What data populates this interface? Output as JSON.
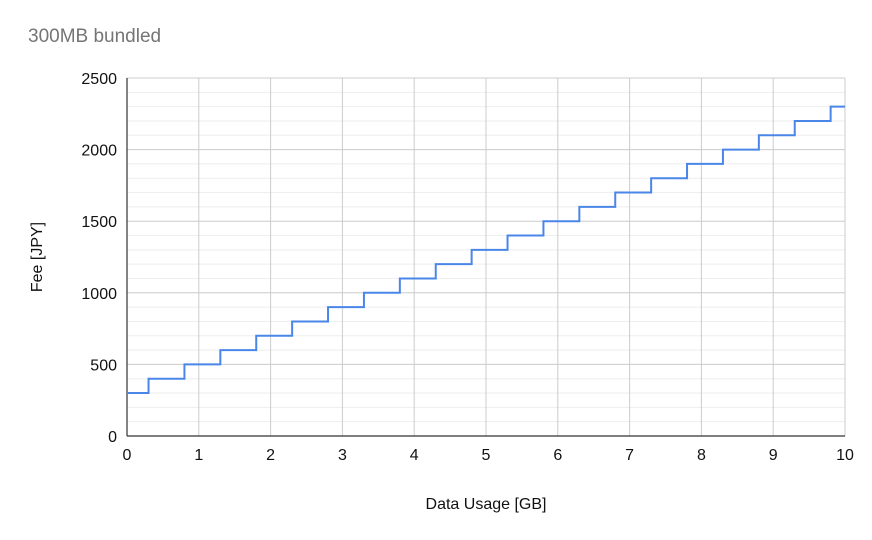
{
  "chart_data": {
    "type": "line",
    "title": "300MB bundled",
    "xlabel": "Data Usage [GB]",
    "ylabel": "Fee [JPY]",
    "xlim": [
      0,
      10
    ],
    "ylim": [
      0,
      2500
    ],
    "x_ticks": [
      0,
      1,
      2,
      3,
      4,
      5,
      6,
      7,
      8,
      9,
      10
    ],
    "y_ticks": [
      0,
      500,
      1000,
      1500,
      2000,
      2500
    ],
    "y_minor_step": 100,
    "grid": true,
    "line_style": "step-after",
    "series": [
      {
        "color": "#4a86e8",
        "x": [
          0,
          0.3,
          0.8,
          1.3,
          1.8,
          2.3,
          2.8,
          3.3,
          3.8,
          4.3,
          4.8,
          5.3,
          5.8,
          6.3,
          6.8,
          7.3,
          7.8,
          8.3,
          8.8,
          9.3,
          9.8,
          10
        ],
        "values": [
          300,
          400,
          500,
          600,
          700,
          800,
          900,
          1000,
          1100,
          1200,
          1300,
          1400,
          1500,
          1600,
          1700,
          1800,
          1900,
          2000,
          2100,
          2200,
          2300,
          2300
        ]
      }
    ]
  }
}
